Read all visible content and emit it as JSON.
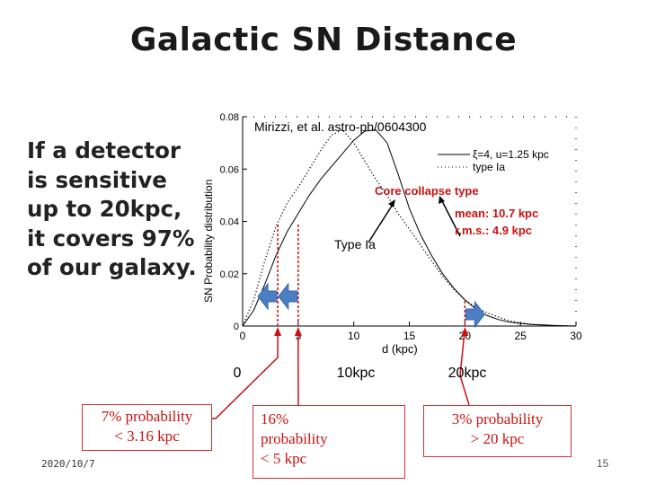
{
  "slide": {
    "title": "Galactic SN Distance",
    "left_text": [
      "If a detector",
      "is sensitive",
      "up to 20kpc,",
      "it covers 97%",
      "of our galaxy."
    ],
    "footer_date": "2020/10/7",
    "page_number": "15"
  },
  "annotations": {
    "citation": "Mirizzi, et al. astro-ph/0604300",
    "core_collapse_title": "Core collapse type",
    "core_collapse_mean": "mean: 10.7 kpc",
    "core_collapse_rms": "r.m.s.: 4.9 kpc",
    "type_ia": "Type Ia",
    "marker_labels": [
      "0",
      "10kpc",
      "20kpc"
    ],
    "box1": [
      "7% probability",
      "< 3.16 kpc"
    ],
    "box2": [
      "16%",
      "probability",
      "< 5 kpc"
    ],
    "box3": [
      "3% probability",
      "> 20 kpc"
    ],
    "colors": {
      "callout_red": "#cc1111",
      "arrow_blue": "#4a7fc4",
      "curve": "#000000"
    }
  },
  "chart_data": {
    "type": "line",
    "xlabel": "d (kpc)",
    "ylabel": "SN Probability distribution",
    "xlim": [
      0,
      30
    ],
    "ylim": [
      0,
      0.08
    ],
    "x_ticks": [
      0,
      5,
      10,
      15,
      20,
      25,
      30
    ],
    "y_ticks": [
      0,
      0.02,
      0.04,
      0.06,
      0.08
    ],
    "y_tick_labels": [
      "0",
      "0.02",
      "0.04",
      "0.06",
      "0.08"
    ],
    "legend": [
      {
        "name": "ξ=4, u=1.25 kpc",
        "style": "solid"
      },
      {
        "name": "type Ia",
        "style": "dotted"
      }
    ],
    "series": [
      {
        "name": "ξ=4, u=1.25 kpc",
        "style": "solid",
        "x": [
          0,
          1,
          2,
          3,
          4,
          5,
          6,
          7,
          8,
          9,
          10,
          11,
          12,
          13,
          14,
          15,
          16,
          17,
          18,
          19,
          20,
          21,
          22,
          23,
          24,
          25,
          26,
          27,
          28,
          29,
          30
        ],
        "y": [
          0.0,
          0.006,
          0.016,
          0.027,
          0.036,
          0.043,
          0.05,
          0.056,
          0.061,
          0.066,
          0.071,
          0.0745,
          0.075,
          0.07,
          0.058,
          0.045,
          0.035,
          0.027,
          0.02,
          0.0145,
          0.01,
          0.0065,
          0.004,
          0.0025,
          0.0015,
          0.001,
          0.0006,
          0.0004,
          0.0002,
          0.0001,
          0.0
        ]
      },
      {
        "name": "type Ia",
        "style": "dotted",
        "x": [
          0,
          1,
          2,
          3,
          4,
          5,
          6,
          7,
          8,
          9,
          10,
          11,
          12,
          13,
          14,
          15,
          16,
          17,
          18,
          19,
          20,
          21,
          22,
          23,
          24,
          25,
          26,
          27,
          28,
          29,
          30
        ],
        "y": [
          0.0,
          0.01,
          0.025,
          0.038,
          0.047,
          0.053,
          0.06,
          0.067,
          0.073,
          0.075,
          0.07,
          0.063,
          0.056,
          0.05,
          0.043,
          0.037,
          0.031,
          0.025,
          0.019,
          0.014,
          0.01,
          0.007,
          0.005,
          0.0035,
          0.002,
          0.0012,
          0.0007,
          0.0004,
          0.0002,
          0.0001,
          0.0
        ]
      }
    ],
    "markers_kpc": [
      3.16,
      5,
      20
    ],
    "arrows": [
      {
        "at_kpc": 3.16,
        "direction": "left"
      },
      {
        "at_kpc": 5,
        "direction": "left"
      },
      {
        "at_kpc": 20,
        "direction": "right"
      }
    ]
  }
}
